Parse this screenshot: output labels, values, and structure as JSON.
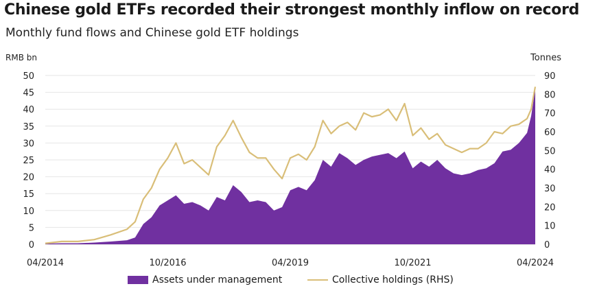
{
  "title": "Chinese gold ETFs recorded their strongest monthly inflow on record",
  "subtitle": "Monthly fund flows and Chinese gold ETF holdings",
  "colors": {
    "aum": "#7030a0",
    "holdings": "#d9be78",
    "grid": "#e6e6e6"
  },
  "chart_data": {
    "type": "area",
    "left_axis": {
      "unit": "RMB bn",
      "ticks": [
        "0",
        "5",
        "10",
        "15",
        "20",
        "25",
        "30",
        "35",
        "40",
        "45",
        "50"
      ],
      "ylim": [
        0,
        50
      ]
    },
    "right_axis": {
      "unit": "Tonnes",
      "ticks": [
        "0",
        "10",
        "20",
        "30",
        "40",
        "50",
        "60",
        "70",
        "80",
        "90"
      ],
      "ylim": [
        0,
        90
      ]
    },
    "x_ticks": [
      "04/2014",
      "10/2016",
      "04/2019",
      "10/2021",
      "04/2024"
    ],
    "grid": true,
    "legend_position": "bottom",
    "series": [
      {
        "name": "Assets under management",
        "axis": "left",
        "style": "area",
        "x": [
          "2014-04",
          "2014-08",
          "2014-12",
          "2015-04",
          "2015-08",
          "2015-12",
          "2016-02",
          "2016-04",
          "2016-06",
          "2016-08",
          "2016-10",
          "2016-12",
          "2017-02",
          "2017-04",
          "2017-06",
          "2017-08",
          "2017-10",
          "2017-12",
          "2018-02",
          "2018-04",
          "2018-06",
          "2018-08",
          "2018-10",
          "2018-12",
          "2019-02",
          "2019-04",
          "2019-06",
          "2019-08",
          "2019-10",
          "2019-12",
          "2020-02",
          "2020-04",
          "2020-06",
          "2020-08",
          "2020-10",
          "2020-12",
          "2021-02",
          "2021-04",
          "2021-06",
          "2021-08",
          "2021-10",
          "2021-12",
          "2022-02",
          "2022-04",
          "2022-06",
          "2022-08",
          "2022-10",
          "2022-12",
          "2023-02",
          "2023-04",
          "2023-06",
          "2023-08",
          "2023-10",
          "2023-12",
          "2024-02",
          "2024-03",
          "2024-04"
        ],
        "values": [
          0.2,
          0.3,
          0.3,
          0.5,
          0.8,
          1.2,
          2.0,
          6.0,
          8.0,
          11.5,
          13.0,
          14.5,
          12.0,
          12.5,
          11.5,
          10.0,
          14.0,
          13.0,
          17.5,
          15.5,
          12.5,
          13.0,
          12.5,
          10.0,
          11.0,
          16.0,
          17.0,
          16.0,
          19.0,
          25.0,
          23.0,
          27.0,
          25.5,
          23.5,
          25.0,
          26.0,
          26.5,
          27.0,
          25.5,
          27.5,
          22.5,
          24.5,
          23.0,
          25.0,
          22.5,
          21.0,
          20.5,
          21.0,
          22.0,
          22.5,
          24.0,
          27.5,
          28.0,
          30.0,
          33.0,
          38.0,
          46.0
        ]
      },
      {
        "name": "Collective holdings (RHS)",
        "axis": "right",
        "style": "line",
        "x": [
          "2014-04",
          "2014-08",
          "2014-12",
          "2015-04",
          "2015-08",
          "2015-12",
          "2016-02",
          "2016-04",
          "2016-06",
          "2016-08",
          "2016-10",
          "2016-12",
          "2017-02",
          "2017-04",
          "2017-06",
          "2017-08",
          "2017-10",
          "2017-12",
          "2018-02",
          "2018-04",
          "2018-06",
          "2018-08",
          "2018-10",
          "2018-12",
          "2019-02",
          "2019-04",
          "2019-06",
          "2019-08",
          "2019-10",
          "2019-12",
          "2020-02",
          "2020-04",
          "2020-06",
          "2020-08",
          "2020-10",
          "2020-12",
          "2021-02",
          "2021-04",
          "2021-06",
          "2021-08",
          "2021-10",
          "2021-12",
          "2022-02",
          "2022-04",
          "2022-06",
          "2022-08",
          "2022-10",
          "2022-12",
          "2023-02",
          "2023-04",
          "2023-06",
          "2023-08",
          "2023-10",
          "2023-12",
          "2024-02",
          "2024-03",
          "2024-04"
        ],
        "values": [
          0.5,
          1.5,
          1.5,
          2.5,
          5.0,
          8.0,
          12.0,
          24.0,
          30.0,
          40.0,
          46.0,
          54.0,
          43.0,
          45.0,
          41.0,
          37.0,
          52.0,
          58.0,
          66.0,
          57.0,
          49.0,
          46.0,
          46.0,
          40.0,
          35.0,
          46.0,
          48.0,
          45.0,
          52.0,
          66.0,
          59.0,
          63.0,
          65.0,
          61.0,
          70.0,
          68.0,
          69.0,
          72.0,
          66.0,
          75.0,
          58.0,
          62.0,
          56.0,
          59.0,
          53.0,
          51.0,
          49.0,
          51.0,
          51.0,
          54.0,
          60.0,
          59.0,
          63.0,
          64.0,
          67.0,
          72.0,
          84.0
        ]
      }
    ]
  }
}
